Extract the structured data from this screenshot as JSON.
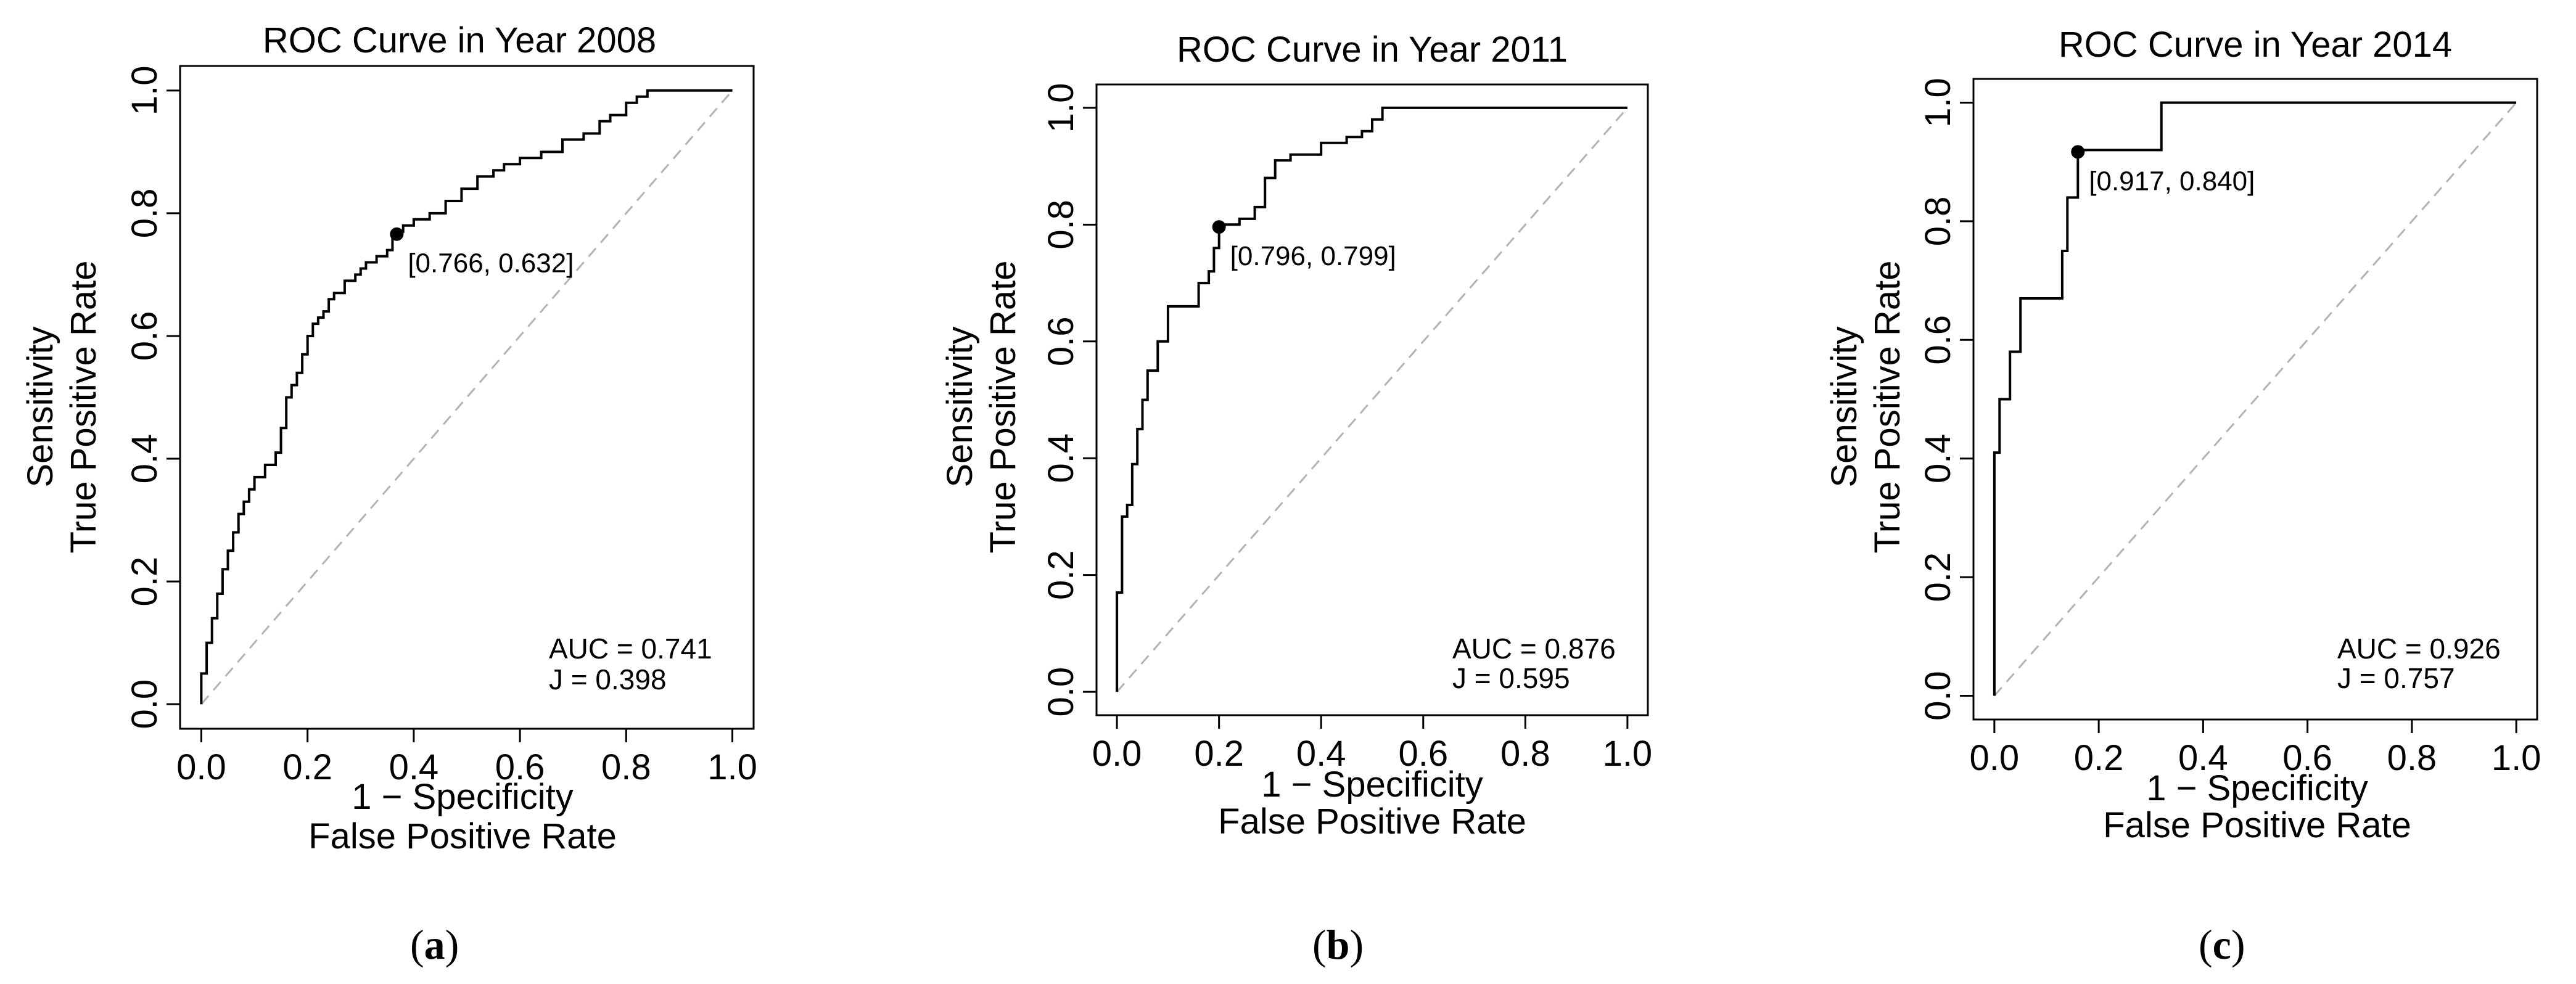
{
  "chart_data": [
    {
      "type": "line",
      "title": "ROC Curve in Year 2008",
      "xlabel": [
        "1 − Specificity",
        "False Positive Rate"
      ],
      "ylabel": [
        "Sensitivity",
        "True Positive Rate"
      ],
      "xlim": [
        0,
        1
      ],
      "ylim": [
        0,
        1
      ],
      "xticks": [
        "0.0",
        "0.2",
        "0.4",
        "0.6",
        "0.8",
        "1.0"
      ],
      "yticks": [
        "0.0",
        "0.2",
        "0.4",
        "0.6",
        "0.8",
        "1.0"
      ],
      "reference_line": {
        "style": "dashed",
        "from": [
          0,
          0
        ],
        "to": [
          1,
          1
        ]
      },
      "series": [
        {
          "name": "ROC",
          "x": [
            0,
            0,
            0.01,
            0.01,
            0.02,
            0.02,
            0.03,
            0.03,
            0.04,
            0.04,
            0.05,
            0.05,
            0.06,
            0.06,
            0.07,
            0.07,
            0.08,
            0.08,
            0.09,
            0.09,
            0.1,
            0.1,
            0.12,
            0.12,
            0.14,
            0.14,
            0.15,
            0.15,
            0.16,
            0.16,
            0.17,
            0.17,
            0.18,
            0.18,
            0.19,
            0.19,
            0.2,
            0.2,
            0.21,
            0.21,
            0.22,
            0.22,
            0.23,
            0.23,
            0.24,
            0.24,
            0.25,
            0.25,
            0.27,
            0.27,
            0.29,
            0.29,
            0.3,
            0.3,
            0.31,
            0.31,
            0.33,
            0.33,
            0.35,
            0.35,
            0.36,
            0.36,
            0.37,
            0.37,
            0.38,
            0.38,
            0.4,
            0.4,
            0.43,
            0.43,
            0.46,
            0.46,
            0.49,
            0.49,
            0.52,
            0.52,
            0.55,
            0.55,
            0.57,
            0.57,
            0.6,
            0.6,
            0.64,
            0.64,
            0.68,
            0.68,
            0.72,
            0.72,
            0.75,
            0.75,
            0.77,
            0.77,
            0.8,
            0.8,
            0.82,
            0.82,
            0.84,
            0.84,
            1
          ],
          "y": [
            0,
            0.05,
            0.05,
            0.1,
            0.1,
            0.14,
            0.14,
            0.18,
            0.18,
            0.22,
            0.22,
            0.25,
            0.25,
            0.28,
            0.28,
            0.31,
            0.31,
            0.33,
            0.33,
            0.35,
            0.35,
            0.37,
            0.37,
            0.39,
            0.39,
            0.41,
            0.41,
            0.45,
            0.45,
            0.5,
            0.5,
            0.52,
            0.52,
            0.54,
            0.54,
            0.57,
            0.57,
            0.6,
            0.6,
            0.62,
            0.62,
            0.63,
            0.63,
            0.64,
            0.64,
            0.66,
            0.66,
            0.67,
            0.67,
            0.69,
            0.69,
            0.7,
            0.7,
            0.71,
            0.71,
            0.72,
            0.72,
            0.73,
            0.73,
            0.74,
            0.74,
            0.76,
            0.76,
            0.77,
            0.77,
            0.78,
            0.78,
            0.79,
            0.79,
            0.8,
            0.8,
            0.82,
            0.82,
            0.84,
            0.84,
            0.86,
            0.86,
            0.87,
            0.87,
            0.88,
            0.88,
            0.89,
            0.89,
            0.9,
            0.9,
            0.92,
            0.92,
            0.93,
            0.93,
            0.95,
            0.95,
            0.96,
            0.96,
            0.98,
            0.98,
            0.99,
            0.99,
            1,
            1
          ]
        }
      ],
      "optimal_point": {
        "x": 0.368,
        "y": 0.766,
        "label": "[0.766, 0.632]"
      },
      "annotations": [
        "AUC = 0.741",
        "J = 0.398"
      ],
      "caption": {
        "open": "(",
        "letter": "a",
        "close": ")"
      }
    },
    {
      "type": "line",
      "title": "ROC Curve in Year 2011",
      "xlabel": [
        "1 − Specificity",
        "False Positive Rate"
      ],
      "ylabel": [
        "Sensitivity",
        "True Positive Rate"
      ],
      "xlim": [
        0,
        1
      ],
      "ylim": [
        0,
        1
      ],
      "xticks": [
        "0.0",
        "0.2",
        "0.4",
        "0.6",
        "0.8",
        "1.0"
      ],
      "yticks": [
        "0.0",
        "0.2",
        "0.4",
        "0.6",
        "0.8",
        "1.0"
      ],
      "reference_line": {
        "style": "dashed",
        "from": [
          0,
          0
        ],
        "to": [
          1,
          1
        ]
      },
      "series": [
        {
          "name": "ROC",
          "x": [
            0,
            0,
            0.01,
            0.01,
            0.02,
            0.02,
            0.03,
            0.03,
            0.04,
            0.04,
            0.05,
            0.05,
            0.06,
            0.06,
            0.08,
            0.08,
            0.1,
            0.1,
            0.16,
            0.16,
            0.18,
            0.18,
            0.19,
            0.19,
            0.2,
            0.2,
            0.24,
            0.24,
            0.27,
            0.27,
            0.29,
            0.29,
            0.31,
            0.31,
            0.34,
            0.34,
            0.4,
            0.4,
            0.45,
            0.45,
            0.48,
            0.48,
            0.5,
            0.5,
            0.52,
            0.52,
            1
          ],
          "y": [
            0,
            0.17,
            0.17,
            0.3,
            0.3,
            0.32,
            0.32,
            0.39,
            0.39,
            0.45,
            0.45,
            0.5,
            0.5,
            0.55,
            0.55,
            0.6,
            0.6,
            0.66,
            0.66,
            0.7,
            0.7,
            0.72,
            0.72,
            0.76,
            0.76,
            0.8,
            0.8,
            0.81,
            0.81,
            0.83,
            0.83,
            0.88,
            0.88,
            0.91,
            0.91,
            0.92,
            0.92,
            0.94,
            0.94,
            0.95,
            0.95,
            0.96,
            0.96,
            0.98,
            0.98,
            1,
            1
          ]
        }
      ],
      "optimal_point": {
        "x": 0.2,
        "y": 0.796,
        "label": "[0.796, 0.799]"
      },
      "annotations": [
        "AUC = 0.876",
        "J = 0.595"
      ],
      "caption": {
        "open": "(",
        "letter": "b",
        "close": ")"
      }
    },
    {
      "type": "line",
      "title": "ROC Curve in Year 2014",
      "xlabel": [
        "1 − Specificity",
        "False Positive Rate"
      ],
      "ylabel": [
        "Sensitivity",
        "True Positive Rate"
      ],
      "xlim": [
        0,
        1
      ],
      "ylim": [
        0,
        1
      ],
      "xticks": [
        "0.0",
        "0.2",
        "0.4",
        "0.6",
        "0.8",
        "1.0"
      ],
      "yticks": [
        "0.0",
        "0.2",
        "0.4",
        "0.6",
        "0.8",
        "1.0"
      ],
      "reference_line": {
        "style": "dashed",
        "from": [
          0,
          0
        ],
        "to": [
          1,
          1
        ]
      },
      "series": [
        {
          "name": "ROC",
          "x": [
            0,
            0,
            0.01,
            0.01,
            0.03,
            0.03,
            0.05,
            0.05,
            0.06,
            0.06,
            0.13,
            0.13,
            0.14,
            0.14,
            0.16,
            0.16,
            0.32,
            0.32,
            1
          ],
          "y": [
            0,
            0.41,
            0.41,
            0.5,
            0.5,
            0.58,
            0.58,
            0.67,
            0.67,
            0.67,
            0.67,
            0.75,
            0.75,
            0.84,
            0.84,
            0.92,
            0.92,
            1,
            1
          ]
        }
      ],
      "optimal_point": {
        "x": 0.16,
        "y": 0.917,
        "label": "[0.917, 0.840]"
      },
      "annotations": [
        "AUC = 0.926",
        "J = 0.757"
      ],
      "caption": {
        "open": "(",
        "letter": "c",
        "close": ")"
      }
    }
  ]
}
